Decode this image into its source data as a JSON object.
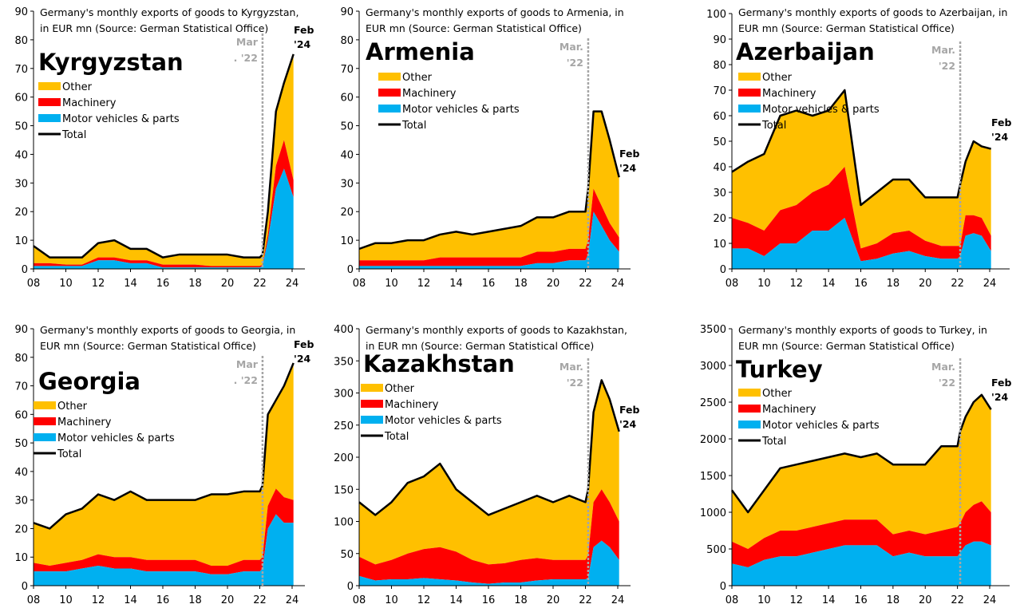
{
  "colors": {
    "other": "#ffc000",
    "machinery": "#ff0000",
    "motor": "#00b0f0",
    "total": "#000000",
    "marker": "#a6a6a6"
  },
  "legend": [
    "Other",
    "Machinery",
    "Motor vehicles & parts",
    "Total"
  ],
  "chart_data": [
    {
      "type": "area",
      "country": "Kyrgyzstan",
      "title_lines": [
        "Germany's monthly exports of goods to Kyrgyzstan,",
        "in EUR mn (Source: German Statistical Office)"
      ],
      "ylim": [
        0,
        90
      ],
      "yticks": [
        0,
        10,
        20,
        30,
        40,
        50,
        60,
        70,
        80,
        90
      ],
      "xticks": [
        "08",
        "10",
        "12",
        "14",
        "16",
        "18",
        "20",
        "22",
        "24"
      ],
      "marker_label": [
        "Mar",
        ". '22"
      ],
      "end_label": [
        "Feb",
        "'24"
      ],
      "x": [
        "2008-01",
        "2009-01",
        "2010-01",
        "2011-01",
        "2012-01",
        "2013-01",
        "2014-01",
        "2015-01",
        "2016-01",
        "2017-01",
        "2018-01",
        "2019-01",
        "2020-01",
        "2021-01",
        "2022-01",
        "2022-03",
        "2022-07",
        "2023-01",
        "2023-07",
        "2024-02"
      ],
      "motor": [
        1,
        1,
        1,
        1,
        3,
        3,
        2,
        2,
        0.5,
        0.5,
        0.5,
        0.5,
        0.5,
        0.5,
        0.5,
        1,
        10,
        28,
        35,
        25
      ],
      "machinery": [
        1,
        1,
        0.5,
        0.5,
        1,
        1,
        1,
        1,
        1,
        1,
        1,
        0.5,
        0.5,
        0.5,
        0.5,
        0.5,
        2,
        8,
        10,
        6
      ],
      "total": [
        8,
        4,
        4,
        4,
        9,
        10,
        7,
        7,
        4,
        5,
        5,
        5,
        5,
        4,
        4,
        5,
        20,
        55,
        65,
        75
      ]
    },
    {
      "type": "area",
      "country": "Armenia",
      "title_lines": [
        "Germany's monthly exports of goods to Armenia, in",
        "EUR mn (Source: German Statistical Office)"
      ],
      "ylim": [
        0,
        90
      ],
      "yticks": [
        0,
        10,
        20,
        30,
        40,
        50,
        60,
        70,
        80,
        90
      ],
      "xticks": [
        "08",
        "10",
        "12",
        "14",
        "16",
        "18",
        "20",
        "22",
        "24"
      ],
      "marker_label": [
        "Mar.",
        "'22"
      ],
      "end_label": [
        "Feb",
        "'24"
      ],
      "x": [
        "2008-01",
        "2009-01",
        "2010-01",
        "2011-01",
        "2012-01",
        "2013-01",
        "2014-01",
        "2015-01",
        "2016-01",
        "2017-01",
        "2018-01",
        "2019-01",
        "2020-01",
        "2021-01",
        "2022-01",
        "2022-03",
        "2022-07",
        "2023-01",
        "2023-07",
        "2024-02"
      ],
      "motor": [
        1,
        1,
        1,
        1,
        1,
        1,
        1,
        1,
        1,
        1,
        1,
        2,
        2,
        3,
        3,
        5,
        20,
        15,
        10,
        6
      ],
      "machinery": [
        2,
        2,
        2,
        2,
        2,
        3,
        3,
        3,
        3,
        3,
        3,
        4,
        4,
        4,
        4,
        5,
        8,
        7,
        6,
        5
      ],
      "total": [
        7,
        9,
        9,
        10,
        10,
        12,
        13,
        12,
        13,
        14,
        15,
        18,
        18,
        20,
        20,
        28,
        55,
        55,
        45,
        32
      ]
    },
    {
      "type": "area",
      "country": "Azerbaijan",
      "title_lines": [
        "Germany's monthly exports of goods to Azerbaijan, in",
        "EUR mn (Source: German Statistical Office)"
      ],
      "ylim": [
        0,
        100
      ],
      "yticks": [
        0,
        10,
        20,
        30,
        40,
        50,
        60,
        70,
        80,
        90,
        100
      ],
      "xticks": [
        "08",
        "10",
        "12",
        "14",
        "16",
        "18",
        "20",
        "22",
        "24"
      ],
      "marker_label": [
        "Mar.",
        "'22"
      ],
      "end_label": [
        "Feb",
        "'24"
      ],
      "x": [
        "2008-01",
        "2009-01",
        "2010-01",
        "2011-01",
        "2012-01",
        "2013-01",
        "2014-01",
        "2015-01",
        "2016-01",
        "2017-01",
        "2018-01",
        "2019-01",
        "2020-01",
        "2021-01",
        "2022-01",
        "2022-03",
        "2022-07",
        "2023-01",
        "2023-07",
        "2024-02"
      ],
      "motor": [
        8,
        8,
        5,
        10,
        10,
        15,
        15,
        20,
        3,
        4,
        6,
        7,
        5,
        4,
        4,
        5,
        13,
        14,
        13,
        7
      ],
      "machinery": [
        12,
        10,
        10,
        13,
        15,
        15,
        18,
        20,
        5,
        6,
        8,
        8,
        6,
        5,
        5,
        4,
        8,
        7,
        7,
        6
      ],
      "total": [
        38,
        42,
        45,
        60,
        62,
        60,
        62,
        70,
        25,
        30,
        35,
        35,
        28,
        28,
        28,
        33,
        42,
        50,
        48,
        47
      ]
    },
    {
      "type": "area",
      "country": "Georgia",
      "title_lines": [
        "Germany's monthly exports of goods to Georgia, in",
        "EUR mn (Source: German Statistical Office)"
      ],
      "ylim": [
        0,
        90
      ],
      "yticks": [
        0,
        10,
        20,
        30,
        40,
        50,
        60,
        70,
        80,
        90
      ],
      "xticks": [
        "08",
        "10",
        "12",
        "14",
        "16",
        "18",
        "20",
        "22",
        "24"
      ],
      "marker_label": [
        "Mar",
        ". '22"
      ],
      "end_label": [
        "Feb",
        "'24"
      ],
      "x": [
        "2008-01",
        "2009-01",
        "2010-01",
        "2011-01",
        "2012-01",
        "2013-01",
        "2014-01",
        "2015-01",
        "2016-01",
        "2017-01",
        "2018-01",
        "2019-01",
        "2020-01",
        "2021-01",
        "2022-01",
        "2022-03",
        "2022-07",
        "2023-01",
        "2023-07",
        "2024-02"
      ],
      "motor": [
        5,
        5,
        5,
        6,
        7,
        6,
        6,
        5,
        5,
        5,
        5,
        4,
        4,
        5,
        5,
        6,
        20,
        25,
        22,
        22
      ],
      "machinery": [
        3,
        2,
        3,
        3,
        4,
        4,
        4,
        4,
        4,
        4,
        4,
        3,
        3,
        4,
        4,
        4,
        8,
        9,
        9,
        8
      ],
      "total": [
        22,
        20,
        25,
        27,
        32,
        30,
        33,
        30,
        30,
        30,
        30,
        32,
        32,
        33,
        33,
        35,
        60,
        65,
        70,
        78
      ]
    },
    {
      "type": "area",
      "country": "Kazakhstan",
      "title_lines": [
        "Germany's monthly exports of goods to Kazakhstan,",
        "in EUR mn (Source: German Statistical Office)"
      ],
      "ylim": [
        0,
        400
      ],
      "yticks": [
        0,
        50,
        100,
        150,
        200,
        250,
        300,
        350,
        400
      ],
      "xticks": [
        "08",
        "10",
        "12",
        "14",
        "16",
        "18",
        "20",
        "22",
        "24"
      ],
      "marker_label": [
        "Mar.",
        "'22"
      ],
      "end_label": [
        "Feb",
        "'24"
      ],
      "x": [
        "2008-01",
        "2009-01",
        "2010-01",
        "2011-01",
        "2012-01",
        "2013-01",
        "2014-01",
        "2015-01",
        "2016-01",
        "2017-01",
        "2018-01",
        "2019-01",
        "2020-01",
        "2021-01",
        "2022-01",
        "2022-03",
        "2022-07",
        "2023-01",
        "2023-07",
        "2024-02"
      ],
      "motor": [
        15,
        8,
        10,
        10,
        12,
        10,
        8,
        5,
        3,
        5,
        5,
        8,
        10,
        10,
        10,
        12,
        60,
        70,
        60,
        40
      ],
      "machinery": [
        30,
        25,
        30,
        40,
        45,
        50,
        45,
        35,
        30,
        30,
        35,
        35,
        30,
        30,
        30,
        35,
        70,
        80,
        70,
        60
      ],
      "total": [
        130,
        110,
        130,
        160,
        170,
        190,
        150,
        130,
        110,
        120,
        130,
        140,
        130,
        140,
        130,
        150,
        270,
        320,
        290,
        240
      ]
    },
    {
      "type": "area",
      "country": "Turkey",
      "title_lines": [
        "Germany's monthly exports of goods to Turkey, in",
        "EUR mn (Source: German Statistical Office)"
      ],
      "ylim": [
        0,
        3500
      ],
      "yticks": [
        0,
        500,
        1000,
        1500,
        2000,
        2500,
        3000,
        3500
      ],
      "xticks": [
        "08",
        "10",
        "12",
        "14",
        "16",
        "18",
        "20",
        "22",
        "24"
      ],
      "marker_label": [
        "Mar.",
        "'22"
      ],
      "end_label": [
        "Feb",
        "'24"
      ],
      "x": [
        "2008-01",
        "2009-01",
        "2010-01",
        "2011-01",
        "2012-01",
        "2013-01",
        "2014-01",
        "2015-01",
        "2016-01",
        "2017-01",
        "2018-01",
        "2019-01",
        "2020-01",
        "2021-01",
        "2022-01",
        "2022-03",
        "2022-07",
        "2023-01",
        "2023-07",
        "2024-02"
      ],
      "motor": [
        300,
        250,
        350,
        400,
        400,
        450,
        500,
        550,
        550,
        550,
        400,
        450,
        400,
        400,
        400,
        450,
        550,
        600,
        600,
        550
      ],
      "machinery": [
        300,
        250,
        300,
        350,
        350,
        350,
        350,
        350,
        350,
        350,
        300,
        300,
        300,
        350,
        400,
        400,
        450,
        500,
        550,
        450
      ],
      "total": [
        1300,
        1000,
        1300,
        1600,
        1650,
        1700,
        1750,
        1800,
        1750,
        1800,
        1650,
        1650,
        1650,
        1900,
        1900,
        2100,
        2300,
        2500,
        2600,
        2400
      ]
    }
  ]
}
